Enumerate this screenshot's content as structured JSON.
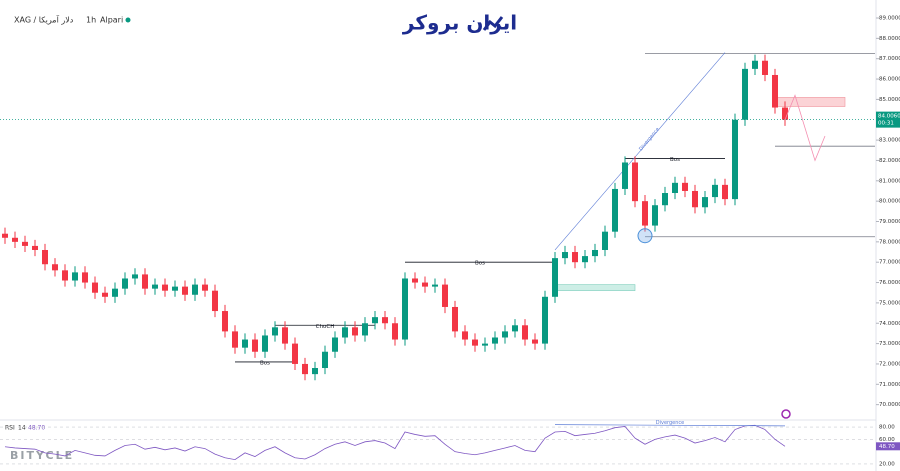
{
  "chart_data": {
    "type": "candlestick",
    "symbol": "XAG / دلار آمریکا",
    "interval": "1h",
    "broker": "Alpari",
    "logo": "ایران بروکر",
    "watermark": "BITYCLE",
    "up_color": "#089981",
    "down_color": "#f23645",
    "ylim": [
      69,
      89
    ],
    "yticks": [
      {
        "value": 89,
        "label": "89.0000"
      },
      {
        "value": 88,
        "label": "88.0000"
      },
      {
        "value": 87,
        "label": "87.0000"
      },
      {
        "value": 86,
        "label": "86.0000"
      },
      {
        "value": 85,
        "label": "85.0000"
      },
      {
        "value": 83,
        "label": "83.0000"
      },
      {
        "value": 82,
        "label": "82.0000"
      },
      {
        "value": 81,
        "label": "81.0000"
      },
      {
        "value": 80,
        "label": "80.0000"
      },
      {
        "value": 79,
        "label": "79.0000"
      },
      {
        "value": 78,
        "label": "78.0000"
      },
      {
        "value": 77,
        "label": "77.0000"
      },
      {
        "value": 76,
        "label": "76.0000"
      },
      {
        "value": 75,
        "label": "75.0000"
      },
      {
        "value": 74,
        "label": "74.0000"
      },
      {
        "value": 73,
        "label": "73.0000"
      },
      {
        "value": 72,
        "label": "72.0000"
      },
      {
        "value": 71,
        "label": "71.0000"
      },
      {
        "value": 70,
        "label": "70.0000"
      }
    ],
    "open": [
      78.4,
      78.2,
      78.0,
      77.8,
      77.6,
      76.9,
      76.6,
      76.1,
      76.5,
      76.0,
      75.5,
      75.3,
      75.7,
      76.2,
      76.4,
      75.7,
      75.9,
      75.6,
      75.8,
      75.4,
      75.9,
      75.6,
      74.6,
      73.6,
      72.8,
      73.2,
      72.6,
      73.4,
      73.8,
      73.0,
      72.0,
      71.5,
      71.8,
      72.6,
      73.3,
      73.8,
      73.4,
      74.0,
      74.3,
      74.0,
      73.2,
      76.2,
      76.0,
      75.8,
      75.9,
      74.8,
      73.6,
      73.2,
      72.9,
      73.0,
      73.3,
      73.6,
      73.9,
      73.2,
      73.0,
      75.3,
      77.2,
      77.5,
      77.0,
      77.3,
      77.6,
      78.5,
      80.6,
      81.9,
      80.0,
      78.8,
      79.8,
      80.4,
      80.9,
      80.5,
      79.7,
      80.2,
      80.8,
      80.1,
      84.0,
      86.5,
      86.9,
      86.2,
      84.6
    ],
    "high": [
      78.7,
      78.5,
      78.3,
      78.1,
      77.9,
      77.2,
      76.9,
      76.8,
      76.8,
      76.3,
      75.8,
      76.0,
      76.5,
      76.7,
      76.7,
      76.2,
      76.2,
      76.1,
      76.1,
      76.2,
      76.2,
      75.9,
      74.9,
      73.9,
      73.5,
      73.5,
      73.7,
      74.1,
      74.1,
      73.3,
      72.3,
      72.1,
      72.9,
      73.6,
      74.1,
      74.1,
      74.3,
      74.6,
      74.6,
      74.3,
      76.5,
      76.5,
      76.3,
      76.2,
      76.2,
      75.1,
      73.9,
      73.5,
      73.3,
      73.6,
      73.9,
      74.2,
      74.2,
      73.5,
      75.6,
      77.5,
      77.8,
      77.8,
      77.6,
      77.9,
      78.8,
      80.9,
      82.2,
      82.2,
      80.3,
      80.1,
      80.7,
      81.2,
      81.2,
      80.8,
      80.5,
      81.1,
      81.1,
      84.3,
      86.8,
      87.2,
      87.2,
      86.5,
      84.9
    ],
    "low": [
      77.9,
      77.7,
      77.5,
      77.3,
      76.6,
      76.3,
      75.8,
      75.8,
      75.7,
      75.2,
      75.0,
      75.0,
      75.4,
      75.9,
      75.4,
      75.4,
      75.3,
      75.3,
      75.1,
      75.1,
      75.3,
      74.3,
      73.3,
      72.5,
      72.5,
      72.3,
      72.3,
      73.1,
      72.7,
      71.7,
      71.2,
      71.2,
      71.5,
      72.3,
      73.0,
      73.1,
      73.1,
      73.7,
      73.7,
      72.9,
      72.9,
      75.7,
      75.5,
      75.5,
      74.5,
      73.3,
      72.9,
      72.6,
      72.6,
      72.7,
      73.0,
      73.3,
      72.9,
      72.7,
      72.7,
      75.0,
      76.9,
      76.7,
      76.7,
      77.0,
      77.3,
      78.2,
      80.3,
      79.7,
      78.5,
      78.5,
      79.5,
      80.1,
      80.2,
      79.4,
      79.4,
      79.9,
      79.8,
      79.8,
      83.7,
      86.2,
      85.9,
      84.3,
      83.7
    ],
    "close": [
      78.2,
      78.0,
      77.8,
      77.6,
      76.9,
      76.6,
      76.1,
      76.5,
      76.0,
      75.5,
      75.3,
      75.7,
      76.2,
      76.4,
      75.7,
      75.9,
      75.6,
      75.8,
      75.4,
      75.9,
      75.6,
      74.6,
      73.6,
      72.8,
      73.2,
      72.6,
      73.4,
      73.8,
      73.0,
      72.0,
      71.5,
      71.8,
      72.6,
      73.3,
      73.8,
      73.4,
      74.0,
      74.3,
      74.0,
      73.2,
      76.2,
      76.0,
      75.8,
      75.9,
      74.8,
      73.6,
      73.2,
      72.9,
      73.0,
      73.3,
      73.6,
      73.9,
      73.2,
      73.0,
      75.3,
      77.2,
      77.5,
      77.0,
      77.3,
      77.6,
      78.5,
      80.6,
      81.9,
      80.0,
      78.8,
      79.8,
      80.4,
      80.9,
      80.5,
      79.7,
      80.2,
      80.8,
      80.1,
      84.0,
      86.5,
      86.9,
      86.2,
      84.6,
      84.0
    ],
    "last_price": {
      "value": 84.006,
      "label": "84.0060"
    },
    "countdown": "00:31",
    "levels": [
      {
        "label": "Bos",
        "value": 72.1,
        "from": 23,
        "to": 29
      },
      {
        "label": "ChoCH",
        "value": 73.9,
        "from": 27,
        "to": 37
      },
      {
        "label": "Bos",
        "value": 77.0,
        "from": 40,
        "to": 55
      },
      {
        "label": "Bos",
        "value": 82.1,
        "from": 62,
        "to": 72
      }
    ],
    "lines": [
      {
        "value": 78.25,
        "from": 64,
        "to": 87
      },
      {
        "value": 82.7,
        "from": 77,
        "to": 87
      },
      {
        "value": 87.25,
        "from": 64,
        "to": 87
      }
    ],
    "zones": [
      {
        "low": 75.6,
        "high": 75.9,
        "from": 55,
        "to": 63,
        "color": "#cdeee6"
      },
      {
        "low": 84.65,
        "high": 85.1,
        "from": 77,
        "to": 84,
        "color": "#fbd3d6"
      }
    ],
    "divergence": {
      "label": "Divergence",
      "from": [
        55,
        77.6
      ],
      "to": [
        72,
        87.3
      ]
    },
    "projection": {
      "x": [
        78,
        79,
        81,
        82
      ],
      "y": [
        84.0,
        85.2,
        82.0,
        83.2
      ]
    },
    "circle": {
      "x": 64,
      "y": 78.3
    },
    "rsi": {
      "title": "RSI",
      "length": 14,
      "last": {
        "value": 48.7,
        "label": "48.70"
      },
      "ylim": [
        15,
        85
      ],
      "yticks": [
        {
          "value": 80,
          "label": "80.00"
        },
        {
          "value": 60,
          "label": "60.00"
        },
        {
          "value": 20,
          "label": "20.00"
        }
      ],
      "values": [
        48,
        46,
        45,
        44,
        38,
        36,
        33,
        42,
        38,
        34,
        33,
        42,
        50,
        52,
        44,
        47,
        43,
        46,
        41,
        48,
        45,
        36,
        30,
        27,
        38,
        32,
        42,
        48,
        38,
        30,
        28,
        35,
        45,
        52,
        56,
        50,
        56,
        58,
        54,
        45,
        72,
        68,
        65,
        66,
        52,
        40,
        37,
        35,
        38,
        42,
        46,
        50,
        42,
        40,
        62,
        72,
        73,
        66,
        68,
        70,
        74,
        79,
        81,
        62,
        52,
        60,
        64,
        67,
        62,
        54,
        58,
        63,
        56,
        76,
        82,
        83,
        76,
        60,
        48.7
      ],
      "divergence": {
        "label": "Divergence",
        "from": [
          55,
          84
        ],
        "to": [
          78,
          82
        ]
      }
    }
  }
}
